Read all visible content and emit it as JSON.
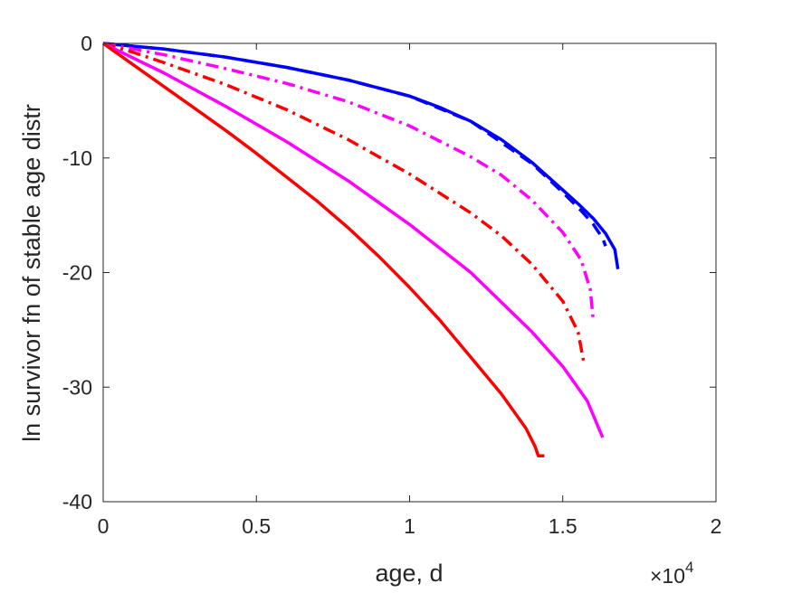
{
  "chart_data": {
    "type": "line",
    "xlabel": "age, d",
    "ylabel": "ln survivor fn of stable age distr",
    "x_exponent_label": "×10",
    "x_exponent_power": "4",
    "x_scale": 10000,
    "xlim": [
      0,
      20000
    ],
    "ylim": [
      -40,
      0
    ],
    "x_ticks": [
      0,
      5000,
      10000,
      15000,
      20000
    ],
    "x_tick_labels": [
      "0",
      "0.5",
      "1",
      "1.5",
      "2"
    ],
    "y_ticks": [
      0,
      -10,
      -20,
      -30,
      -40
    ],
    "y_tick_labels": [
      "0",
      "-10",
      "-20",
      "-30",
      "-40"
    ],
    "grid": false,
    "box": true,
    "series": [
      {
        "color": "#0000ff",
        "style": "solid",
        "points": [
          [
            0,
            0
          ],
          [
            2000,
            -0.5
          ],
          [
            4000,
            -1.2
          ],
          [
            6000,
            -2.1
          ],
          [
            8000,
            -3.2
          ],
          [
            10000,
            -4.6
          ],
          [
            11000,
            -5.6
          ],
          [
            12000,
            -6.8
          ],
          [
            13000,
            -8.4
          ],
          [
            14000,
            -10.4
          ],
          [
            15000,
            -12.8
          ],
          [
            15500,
            -14.0
          ],
          [
            16000,
            -15.3
          ],
          [
            16400,
            -16.6
          ],
          [
            16700,
            -18.0
          ],
          [
            16800,
            -19.7
          ]
        ]
      },
      {
        "color": "#0000ff",
        "style": "dashed",
        "points": [
          [
            0,
            0
          ],
          [
            2000,
            -0.5
          ],
          [
            4000,
            -1.2
          ],
          [
            6000,
            -2.1
          ],
          [
            8000,
            -3.2
          ],
          [
            10000,
            -4.6
          ],
          [
            12000,
            -6.8
          ],
          [
            14000,
            -10.5
          ],
          [
            15000,
            -13.0
          ],
          [
            15600,
            -14.6
          ],
          [
            16000,
            -15.8
          ],
          [
            16300,
            -17.0
          ],
          [
            16400,
            -17.7
          ]
        ]
      },
      {
        "color": "#ff00ff",
        "style": "dashdot",
        "points": [
          [
            0,
            0
          ],
          [
            1000,
            -0.5
          ],
          [
            2000,
            -1.0
          ],
          [
            4000,
            -2.2
          ],
          [
            6000,
            -3.5
          ],
          [
            8000,
            -5.1
          ],
          [
            10000,
            -7.2
          ],
          [
            12000,
            -9.9
          ],
          [
            13000,
            -11.5
          ],
          [
            14000,
            -13.7
          ],
          [
            15000,
            -16.5
          ],
          [
            15600,
            -18.9
          ],
          [
            15900,
            -21.5
          ],
          [
            16000,
            -24.3
          ]
        ]
      },
      {
        "color": "#ff0000",
        "style": "dashdot",
        "points": [
          [
            0,
            0
          ],
          [
            1000,
            -0.8
          ],
          [
            2000,
            -1.7
          ],
          [
            4000,
            -3.6
          ],
          [
            6000,
            -5.8
          ],
          [
            8000,
            -8.4
          ],
          [
            10000,
            -11.4
          ],
          [
            12000,
            -14.8
          ],
          [
            13000,
            -16.8
          ],
          [
            14000,
            -19.3
          ],
          [
            15000,
            -22.5
          ],
          [
            15500,
            -25.2
          ],
          [
            15700,
            -28.0
          ]
        ]
      },
      {
        "color": "#ff00ff",
        "style": "solid",
        "points": [
          [
            0,
            0
          ],
          [
            1000,
            -1.3
          ],
          [
            2000,
            -2.6
          ],
          [
            4000,
            -5.5
          ],
          [
            6000,
            -8.6
          ],
          [
            8000,
            -12.0
          ],
          [
            10000,
            -15.8
          ],
          [
            12000,
            -20.0
          ],
          [
            14000,
            -25.2
          ],
          [
            15000,
            -28.2
          ],
          [
            15800,
            -31.2
          ],
          [
            16300,
            -34.4
          ]
        ]
      },
      {
        "color": "#ff0000",
        "style": "solid",
        "points": [
          [
            0,
            0
          ],
          [
            1000,
            -1.9
          ],
          [
            2000,
            -3.8
          ],
          [
            3000,
            -5.7
          ],
          [
            4000,
            -7.6
          ],
          [
            5000,
            -9.6
          ],
          [
            6000,
            -11.7
          ],
          [
            7000,
            -13.8
          ],
          [
            8000,
            -16.1
          ],
          [
            9000,
            -18.6
          ],
          [
            10000,
            -21.3
          ],
          [
            11000,
            -24.2
          ],
          [
            12000,
            -27.4
          ],
          [
            13000,
            -30.6
          ],
          [
            13800,
            -33.6
          ],
          [
            14100,
            -35.2
          ],
          [
            14200,
            -36.0
          ],
          [
            14400,
            -36.0
          ]
        ]
      }
    ]
  }
}
